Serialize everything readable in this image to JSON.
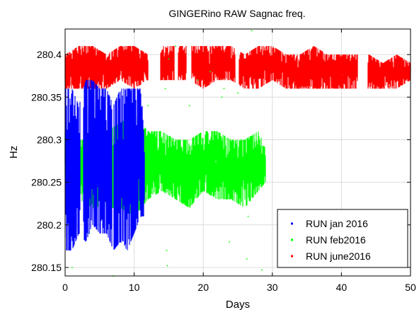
{
  "chart_data": {
    "type": "scatter",
    "title": "GINGERino RAW Sagnac freq.",
    "xlabel": "Days",
    "ylabel": "Hz",
    "xlim": [
      0,
      50
    ],
    "ylim": [
      280.14,
      280.43
    ],
    "xticks": [
      0,
      10,
      20,
      30,
      40,
      50
    ],
    "xtick_labels": [
      "0",
      "10",
      "20",
      "30",
      "40",
      "50"
    ],
    "yticks": [
      280.15,
      280.2,
      280.25,
      280.3,
      280.35,
      280.4
    ],
    "ytick_labels": [
      "280.15",
      "280.2",
      "280.25",
      "280.3",
      "280.35",
      "280.4"
    ],
    "grid": true,
    "legend_position": "bottom-right",
    "series": [
      {
        "name": "RUN jan 2016",
        "color": "#0000ff",
        "x_range": [
          0,
          11.5
        ],
        "gap_ranges": [
          [
            2.2,
            2.6
          ],
          [
            6.8,
            7.0
          ]
        ],
        "band": [
          [
            0,
            280.17,
            280.36
          ],
          [
            1,
            280.17,
            280.36
          ],
          [
            2,
            280.19,
            280.34
          ],
          [
            3,
            280.18,
            280.37
          ],
          [
            4,
            280.2,
            280.37
          ],
          [
            5,
            280.19,
            280.36
          ],
          [
            6,
            280.19,
            280.36
          ],
          [
            7,
            280.17,
            280.34
          ],
          [
            8,
            280.18,
            280.36
          ],
          [
            9,
            280.17,
            280.36
          ],
          [
            10,
            280.19,
            280.36
          ],
          [
            11,
            280.21,
            280.36
          ],
          [
            11.5,
            280.21,
            280.3
          ]
        ]
      },
      {
        "name": "RUN feb2016",
        "color": "#00ff00",
        "x_range": [
          0,
          29
        ],
        "gap_ranges": [],
        "band": [
          [
            0,
            280.23,
            280.31
          ],
          [
            2,
            280.23,
            280.3
          ],
          [
            4,
            280.22,
            280.3
          ],
          [
            6,
            280.22,
            280.31
          ],
          [
            8,
            280.22,
            280.32
          ],
          [
            10,
            280.21,
            280.33
          ],
          [
            12,
            280.23,
            280.31
          ],
          [
            14,
            280.24,
            280.31
          ],
          [
            16,
            280.23,
            280.3
          ],
          [
            18,
            280.22,
            280.3
          ],
          [
            20,
            280.24,
            280.31
          ],
          [
            22,
            280.23,
            280.31
          ],
          [
            24,
            280.23,
            280.3
          ],
          [
            26,
            280.22,
            280.3
          ],
          [
            28,
            280.24,
            280.31
          ],
          [
            29,
            280.25,
            280.29
          ]
        ],
        "outliers": [
          [
            1,
            280.15
          ],
          [
            3.5,
            280.19
          ],
          [
            7,
            280.14
          ],
          [
            12,
            280.34
          ],
          [
            14.5,
            280.36
          ],
          [
            15,
            280.395
          ],
          [
            16,
            280.41
          ],
          [
            18,
            280.34
          ],
          [
            21,
            280.38
          ],
          [
            23,
            280.36
          ],
          [
            14.7,
            280.17
          ],
          [
            23.8,
            280.18
          ],
          [
            26.3,
            280.16
          ],
          [
            28.5,
            280.147
          ],
          [
            26.5,
            280.21
          ],
          [
            22.7,
            280.35
          ],
          [
            14.8,
            280.152
          ],
          [
            27,
            280.428
          ],
          [
            25,
            280.355
          ],
          [
            19.2,
            280.37
          ]
        ]
      },
      {
        "name": "RUN june2016",
        "color": "#ff0000",
        "x_range": [
          0,
          50
        ],
        "gap_ranges": [
          [
            12,
            13.8
          ],
          [
            15.8,
            16.3
          ],
          [
            17.6,
            18.3
          ],
          [
            24.6,
            25.2
          ],
          [
            42.4,
            43.8
          ]
        ],
        "band": [
          [
            0,
            280.36,
            280.4
          ],
          [
            2,
            280.36,
            280.41
          ],
          [
            4,
            280.36,
            280.41
          ],
          [
            6,
            280.36,
            280.4
          ],
          [
            8,
            280.37,
            280.41
          ],
          [
            10,
            280.36,
            280.41
          ],
          [
            12,
            280.37,
            280.4
          ],
          [
            14,
            280.37,
            280.41
          ],
          [
            16,
            280.37,
            280.41
          ],
          [
            18,
            280.37,
            280.41
          ],
          [
            20,
            280.36,
            280.41
          ],
          [
            22,
            280.37,
            280.41
          ],
          [
            24,
            280.37,
            280.41
          ],
          [
            26,
            280.36,
            280.4
          ],
          [
            28,
            280.36,
            280.41
          ],
          [
            30,
            280.37,
            280.41
          ],
          [
            32,
            280.36,
            280.4
          ],
          [
            34,
            280.36,
            280.4
          ],
          [
            36,
            280.36,
            280.41
          ],
          [
            38,
            280.36,
            280.4
          ],
          [
            40,
            280.36,
            280.4
          ],
          [
            42,
            280.36,
            280.4
          ],
          [
            44,
            280.36,
            280.4
          ],
          [
            46,
            280.36,
            280.39
          ],
          [
            48,
            280.36,
            280.4
          ],
          [
            50,
            280.37,
            280.39
          ]
        ]
      }
    ]
  }
}
